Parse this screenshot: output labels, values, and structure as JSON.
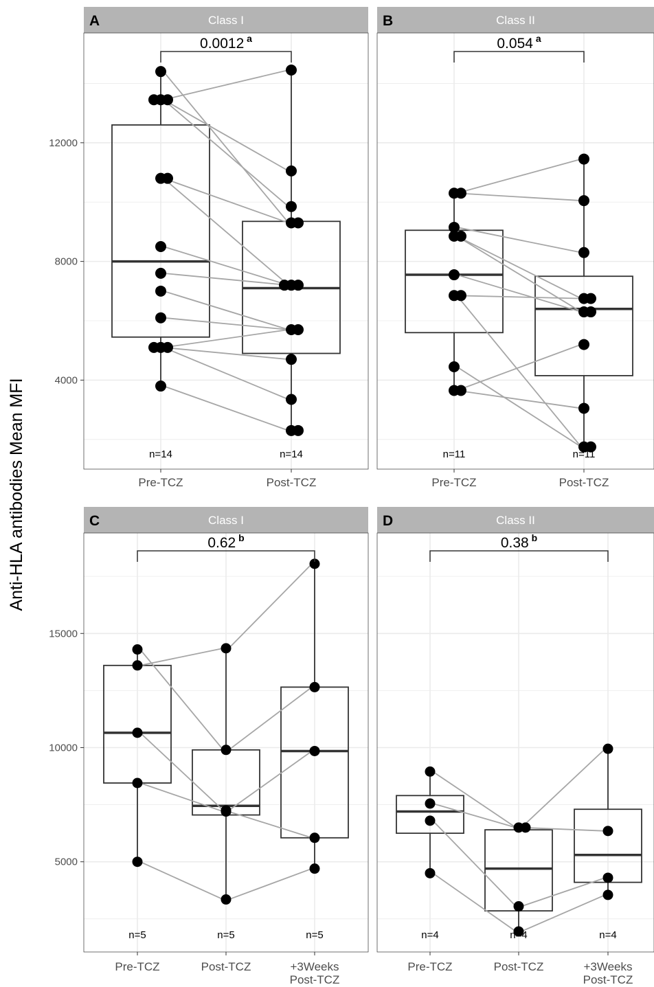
{
  "ylabel": "Anti-HLA antibodies Mean MFI",
  "colors": {
    "strip": "#b4b4b4",
    "strip_text": "#ffffff",
    "grid": "#ebebeb",
    "panel_border": "#333333",
    "line": "#a6a6a6",
    "point": "#000000",
    "box": "#333333"
  },
  "chart_data": [
    {
      "type": "box",
      "panel": "A",
      "title": "Class I",
      "categories": [
        "Pre-TCZ",
        "Post-TCZ"
      ],
      "ylim": [
        1000,
        15700
      ],
      "yticks": [
        4000,
        8000,
        12000
      ],
      "ytick_labels": [
        "4000",
        "8000",
        "12000"
      ],
      "boxes": [
        {
          "q1": 5450,
          "median": 8000,
          "q3": 12600,
          "lo": 3800,
          "hi": 14400
        },
        {
          "q1": 4900,
          "median": 7100,
          "q3": 9350,
          "lo": 2300,
          "hi": 14450
        }
      ],
      "points": [
        [
          14400,
          13450,
          13450,
          13450,
          10800,
          10800,
          8500,
          7600,
          7000,
          6100,
          5100,
          5100,
          5100,
          3800
        ],
        [
          14450,
          11050,
          9850,
          9300,
          9300,
          7200,
          7200,
          7200,
          5700,
          5700,
          4700,
          3350,
          2300,
          2300
        ]
      ],
      "pairs": [
        [
          14400,
          9300
        ],
        [
          13450,
          14450
        ],
        [
          13450,
          11050
        ],
        [
          13450,
          9850
        ],
        [
          10800,
          9300
        ],
        [
          10800,
          7200
        ],
        [
          8500,
          7200
        ],
        [
          7600,
          7200
        ],
        [
          7000,
          5700
        ],
        [
          6100,
          5700
        ],
        [
          5100,
          5700
        ],
        [
          5100,
          4700
        ],
        [
          5100,
          3350
        ],
        [
          3800,
          2300
        ]
      ],
      "n_labels": [
        "n=14",
        "n=14"
      ],
      "pvalue": "0.0012",
      "pvalue_sup": "a",
      "bracket": [
        0,
        1
      ]
    },
    {
      "type": "box",
      "panel": "B",
      "title": "Class II",
      "categories": [
        "Pre-TCZ",
        "Post-TCZ"
      ],
      "ylim": [
        1000,
        15700
      ],
      "yticks": [
        4000,
        8000,
        12000
      ],
      "ytick_labels": [
        "4000",
        "8000",
        "12000"
      ],
      "boxes": [
        {
          "q1": 5600,
          "median": 7550,
          "q3": 9050,
          "lo": 3650,
          "hi": 10300
        },
        {
          "q1": 4150,
          "median": 6400,
          "q3": 7500,
          "lo": 1750,
          "hi": 11450
        }
      ],
      "points": [
        [
          10300,
          10300,
          9150,
          8850,
          8850,
          7550,
          6850,
          6850,
          4450,
          3650,
          3650
        ],
        [
          11450,
          10050,
          8300,
          6750,
          6750,
          6300,
          6300,
          5200,
          3050,
          1750,
          1750
        ]
      ],
      "pairs": [
        [
          10300,
          11450
        ],
        [
          10300,
          10050
        ],
        [
          9150,
          8300
        ],
        [
          8850,
          6750
        ],
        [
          8850,
          6300
        ],
        [
          7550,
          6300
        ],
        [
          6850,
          6750
        ],
        [
          6850,
          1750
        ],
        [
          4450,
          1750
        ],
        [
          3650,
          5200
        ],
        [
          3650,
          3050
        ]
      ],
      "n_labels": [
        "n=11",
        "n=11"
      ],
      "pvalue": "0.054",
      "pvalue_sup": "a",
      "bracket": [
        0,
        1
      ]
    },
    {
      "type": "box",
      "panel": "C",
      "title": "Class I",
      "categories": [
        "Pre-TCZ",
        "Post-TCZ",
        "+3Weeks\nPost-TCZ"
      ],
      "ylim": [
        1050,
        19400
      ],
      "yticks": [
        5000,
        10000,
        15000
      ],
      "ytick_labels": [
        "5000",
        "10000",
        "15000"
      ],
      "boxes": [
        {
          "q1": 8450,
          "median": 10650,
          "q3": 13600,
          "lo": 5000,
          "hi": 14300
        },
        {
          "q1": 7050,
          "median": 7450,
          "q3": 9900,
          "lo": 3350,
          "hi": 14350
        },
        {
          "q1": 6050,
          "median": 9850,
          "q3": 12650,
          "lo": 4700,
          "hi": 18050
        }
      ],
      "points": [
        [
          14300,
          13600,
          10650,
          8450,
          5000
        ],
        [
          14350,
          9900,
          7250,
          7200,
          3350
        ],
        [
          18050,
          12650,
          9850,
          6050,
          4700
        ]
      ],
      "pairs": [
        [
          14300,
          9900
        ],
        [
          13600,
          14350
        ],
        [
          10650,
          7250
        ],
        [
          8450,
          7200
        ],
        [
          5000,
          3350
        ]
      ],
      "pairs2": [
        [
          14350,
          18050
        ],
        [
          9900,
          12650
        ],
        [
          7250,
          9850
        ],
        [
          7200,
          6050
        ],
        [
          3350,
          4700
        ]
      ],
      "n_labels": [
        "n=5",
        "n=5",
        "n=5"
      ],
      "pvalue": "0.62",
      "pvalue_sup": "b",
      "bracket": [
        0,
        2
      ]
    },
    {
      "type": "box",
      "panel": "D",
      "title": "Class II",
      "categories": [
        "Pre-TCZ",
        "Post-TCZ",
        "+3Weeks\nPost-TCZ"
      ],
      "ylim": [
        1050,
        19400
      ],
      "yticks": [
        5000,
        10000,
        15000
      ],
      "ytick_labels": [
        "5000",
        "10000",
        "15000"
      ],
      "boxes": [
        {
          "q1": 6250,
          "median": 7200,
          "q3": 7900,
          "lo": 4500,
          "hi": 8950
        },
        {
          "q1": 2850,
          "median": 4700,
          "q3": 6400,
          "lo": 1950,
          "hi": 6500
        },
        {
          "q1": 4100,
          "median": 5300,
          "q3": 7300,
          "lo": 3550,
          "hi": 9950
        }
      ],
      "points": [
        [
          8950,
          7550,
          6800,
          4500
        ],
        [
          6500,
          6500,
          3050,
          1950
        ],
        [
          9950,
          6350,
          4300,
          3550
        ]
      ],
      "pairs": [
        [
          8950,
          6500
        ],
        [
          7550,
          6500
        ],
        [
          6800,
          3050
        ],
        [
          4500,
          1950
        ]
      ],
      "pairs2": [
        [
          6500,
          9950
        ],
        [
          6500,
          6350
        ],
        [
          3050,
          4300
        ],
        [
          1950,
          3550
        ]
      ],
      "n_labels": [
        "n=4",
        "n=4",
        "n=4"
      ],
      "pvalue": "0.38",
      "pvalue_sup": "b",
      "bracket": [
        0,
        2
      ]
    }
  ]
}
